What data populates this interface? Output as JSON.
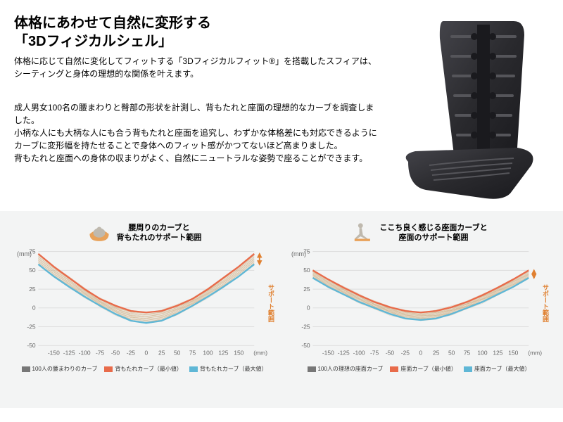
{
  "title_line1": "体格にあわせて自然に変形する",
  "title_line2": "「3Dフィジカルシェル」",
  "lead_text": "体格に応じて自然に変化してフィットする「3Dフィジカルフィット®」を搭載したスフィアは、シーティングと身体の理想的な関係を叶えます。",
  "body_text": "成人男女100名の腰まわりと臀部の形状を計測し、背もたれと座面の理想的なカーブを調査しました。\n小柄な人にも大柄な人にも合う背もたれと座面を追究し、わずかな体格差にも対応できるようにカーブに変形幅を持たせることで身体へのフィット感がかつてないほど高まりました。\n背もたれと座面への身体の収まりがよく、自然にニュートラルな姿勢で座ることができます。",
  "product_shell": {
    "fill_color": "#2a2a2e",
    "highlight_color": "#55555a"
  },
  "charts": {
    "background_color": "#f3f4f4",
    "axis_color": "#bfbfbf",
    "grid_color": "#dcdcdc",
    "tick_fontsize": 9,
    "y_unit": "(mm)",
    "x_unit": "(mm)",
    "ylim": [
      -50,
      75
    ],
    "yticks": [
      -50,
      -25,
      0,
      25,
      50,
      75
    ],
    "xlim": [
      -175,
      175
    ],
    "xticks": [
      -150,
      -125,
      -100,
      -75,
      -50,
      -25,
      0,
      25,
      50,
      75,
      100,
      125,
      150
    ],
    "support_label": "サポート範囲",
    "support_arrow_color": "#e08030",
    "left": {
      "header_line1": "腰周りのカーブと",
      "header_line2": "背もたれのサポート範囲",
      "icon_type": "top-view",
      "icon_body_color": "#bfb9ae",
      "icon_seat_color": "#e8a25a",
      "crowd_color": "#c9a77a",
      "min_curve_color": "#e86b4a",
      "max_curve_color": "#5fb7d6",
      "min_curve": [
        [
          -175,
          72
        ],
        [
          -150,
          55
        ],
        [
          -125,
          40
        ],
        [
          -100,
          25
        ],
        [
          -75,
          12
        ],
        [
          -50,
          3
        ],
        [
          -25,
          -4
        ],
        [
          0,
          -6
        ],
        [
          25,
          -4
        ],
        [
          50,
          3
        ],
        [
          75,
          12
        ],
        [
          100,
          25
        ],
        [
          125,
          40
        ],
        [
          150,
          55
        ],
        [
          175,
          72
        ]
      ],
      "max_curve": [
        [
          -175,
          58
        ],
        [
          -150,
          42
        ],
        [
          -125,
          28
        ],
        [
          -100,
          15
        ],
        [
          -75,
          3
        ],
        [
          -50,
          -8
        ],
        [
          -25,
          -17
        ],
        [
          0,
          -20
        ],
        [
          25,
          -17
        ],
        [
          50,
          -8
        ],
        [
          75,
          3
        ],
        [
          100,
          15
        ],
        [
          125,
          28
        ],
        [
          150,
          42
        ],
        [
          175,
          58
        ]
      ],
      "legend": [
        {
          "label": "100人の腰まわりのカーブ",
          "color": "#777777"
        },
        {
          "label": "背もたれカーブ（最小値）",
          "color": "#e86b4a"
        },
        {
          "label": "背もたれカーブ（最大値）",
          "color": "#5fb7d6"
        }
      ]
    },
    "right": {
      "header_line1": "ここち良く感じる座面カーブと",
      "header_line2": "座面のサポート範囲",
      "icon_type": "side-view",
      "icon_body_color": "#bfb9ae",
      "icon_seat_color": "#e8a25a",
      "crowd_color": "#c9a77a",
      "min_curve_color": "#e86b4a",
      "max_curve_color": "#5fb7d6",
      "min_curve": [
        [
          -175,
          50
        ],
        [
          -150,
          38
        ],
        [
          -125,
          27
        ],
        [
          -100,
          17
        ],
        [
          -75,
          8
        ],
        [
          -50,
          1
        ],
        [
          -25,
          -4
        ],
        [
          0,
          -6
        ],
        [
          25,
          -4
        ],
        [
          50,
          1
        ],
        [
          75,
          8
        ],
        [
          100,
          17
        ],
        [
          125,
          27
        ],
        [
          150,
          38
        ],
        [
          175,
          50
        ]
      ],
      "max_curve": [
        [
          -175,
          40
        ],
        [
          -150,
          28
        ],
        [
          -125,
          18
        ],
        [
          -100,
          8
        ],
        [
          -75,
          0
        ],
        [
          -50,
          -8
        ],
        [
          -25,
          -14
        ],
        [
          0,
          -16
        ],
        [
          25,
          -14
        ],
        [
          50,
          -8
        ],
        [
          75,
          0
        ],
        [
          100,
          8
        ],
        [
          125,
          18
        ],
        [
          150,
          28
        ],
        [
          175,
          40
        ]
      ],
      "legend": [
        {
          "label": "100人の理想の座面カーブ",
          "color": "#777777"
        },
        {
          "label": "座面カーブ（最小値）",
          "color": "#e86b4a"
        },
        {
          "label": "座面カーブ（最大値）",
          "color": "#5fb7d6"
        }
      ]
    }
  }
}
